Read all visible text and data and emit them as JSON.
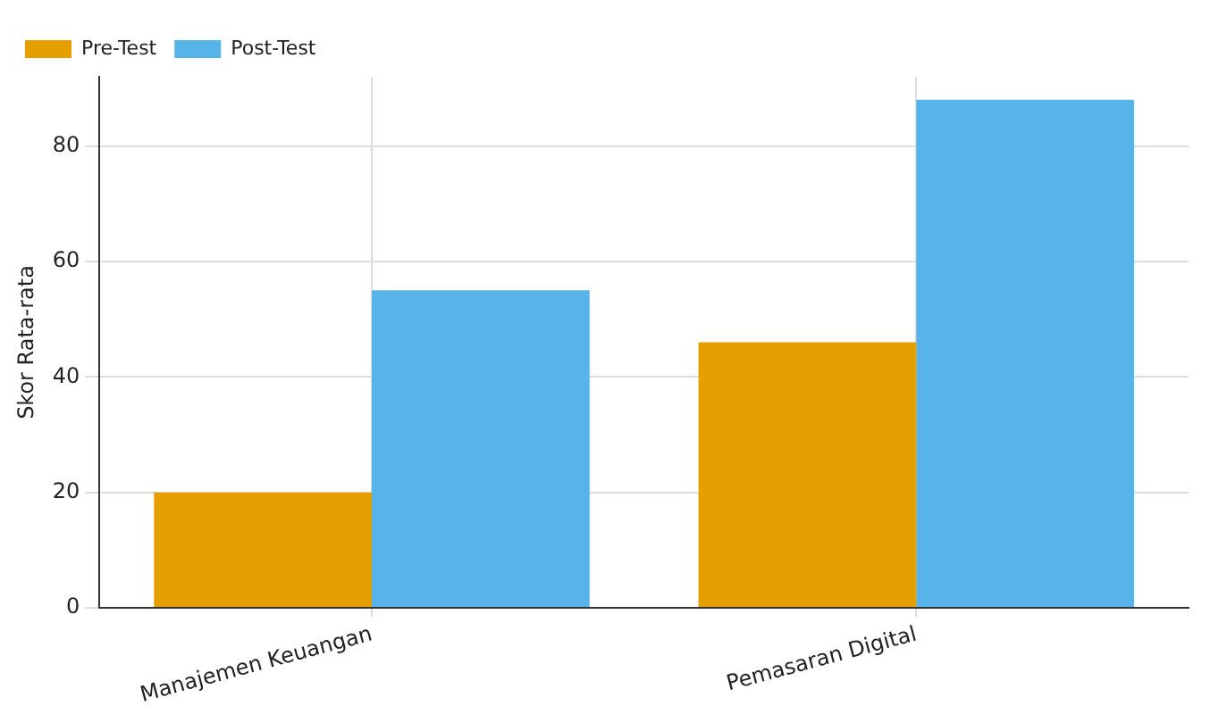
{
  "chart_data": {
    "type": "bar",
    "ylabel": "Skor Rata-rata",
    "categories": [
      "Manajemen Keuangan",
      "Pemasaran Digital"
    ],
    "series": [
      {
        "name": "Pre-Test",
        "color": "#e69f00",
        "values": [
          20,
          46
        ]
      },
      {
        "name": "Post-Test",
        "color": "#56b4e9",
        "values": [
          55,
          88
        ]
      }
    ],
    "ylim": [
      0,
      92
    ],
    "yticks": [
      0,
      20,
      40,
      60,
      80
    ],
    "grid": true,
    "legend": "top left"
  }
}
